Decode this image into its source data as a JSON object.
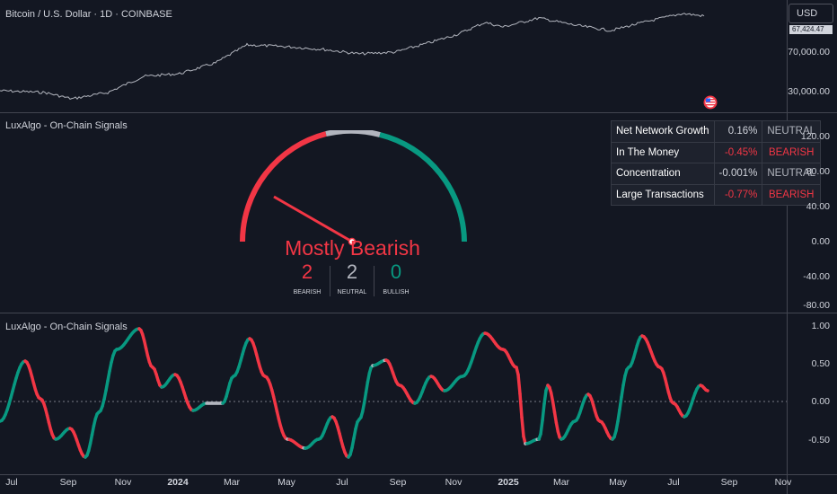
{
  "colors": {
    "bearish": "#f23645",
    "neutral": "#b2b5be",
    "bullish": "#089981",
    "background": "#131722"
  },
  "price_pane": {
    "title": "Bitcoin / U.S. Dollar · 1D · COINBASE",
    "currency_button": "USD",
    "last_price_badge": "67,424.47",
    "y_axis_labels": [
      "70,000.00",
      "30,000.00"
    ],
    "flag_icon": "us-flag-icon"
  },
  "gauge_pane": {
    "title": "LuxAlgo - On-Chain Signals",
    "gauge_label": "Mostly Bearish",
    "needle_value": "bearish",
    "counts": [
      {
        "value": "2",
        "label": "BEARISH"
      },
      {
        "value": "2",
        "label": "NEUTRAL"
      },
      {
        "value": "0",
        "label": "BULLISH"
      }
    ],
    "y_axis_labels": [
      "120.00",
      "80.00",
      "40.00",
      "0.00",
      "-40.00",
      "-80.00"
    ],
    "table": [
      {
        "name": "Net Network Growth",
        "value": "0.16%",
        "status": "NEUTRAL"
      },
      {
        "name": "In The Money",
        "value": "-0.45%",
        "status": "BEARISH"
      },
      {
        "name": "Concentration",
        "value": "-0.001%",
        "status": "NEUTRAL"
      },
      {
        "name": "Large Transactions",
        "value": "-0.77%",
        "status": "BEARISH"
      }
    ]
  },
  "oscillator_pane": {
    "title": "LuxAlgo - On-Chain Signals",
    "y_axis_labels": [
      "1.00",
      "0.50",
      "0.00",
      "-0.50"
    ]
  },
  "x_axis": [
    "Jul",
    "Sep",
    "Nov",
    "2024",
    "Mar",
    "May",
    "Jul",
    "Sep",
    "Nov",
    "2025",
    "Mar",
    "May",
    "Jul",
    "Sep",
    "Nov"
  ]
}
